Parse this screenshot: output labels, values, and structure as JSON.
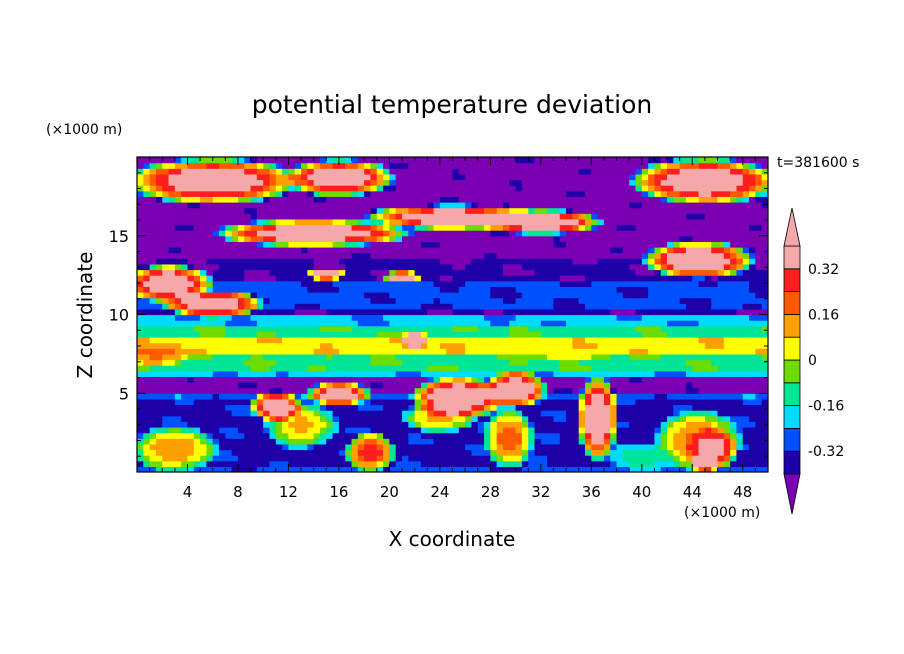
{
  "chart_data": {
    "type": "heatmap",
    "title": "potential temperature deviation",
    "time_label": "t=381600 s",
    "xlabel": "X coordinate",
    "ylabel": "Z coordinate",
    "x_unit": "(×1000 m)",
    "y_unit": "(×1000 m)",
    "xlim": [
      0,
      50
    ],
    "ylim": [
      0,
      20
    ],
    "x_ticks": [
      "4",
      "8",
      "12",
      "16",
      "20",
      "24",
      "28",
      "32",
      "36",
      "40",
      "44",
      "48"
    ],
    "x_tick_values": [
      4,
      8,
      12,
      16,
      20,
      24,
      28,
      32,
      36,
      40,
      44,
      48
    ],
    "y_ticks": [
      "5",
      "10",
      "15"
    ],
    "y_tick_values": [
      5,
      10,
      15
    ],
    "colorbar": {
      "levels": [
        -0.4,
        -0.32,
        -0.24,
        -0.16,
        -0.08,
        0,
        0.08,
        0.16,
        0.24,
        0.32,
        0.4
      ],
      "labels": [
        "0.32",
        "0.16",
        "0",
        "-0.16",
        "-0.32"
      ],
      "label_values": [
        0.32,
        0.16,
        0,
        -0.16,
        -0.32
      ],
      "colors": [
        "#7b00b4",
        "#1e00a8",
        "#0050ff",
        "#00dcff",
        "#00e696",
        "#6fdc00",
        "#ffff00",
        "#ffa000",
        "#ff5a00",
        "#ff1e1e",
        "#f5a8a8"
      ],
      "over_color": "#f5a8a8",
      "under_color": "#7b00b4"
    },
    "bands": [
      {
        "z0": 0,
        "z1": 0.5,
        "value": -0.3
      },
      {
        "z0": 0.5,
        "z1": 4.5,
        "value": -0.35
      },
      {
        "z0": 4.5,
        "z1": 5.0,
        "value": -0.28
      },
      {
        "z0": 5.0,
        "z1": 6.0,
        "value": -0.44
      },
      {
        "z0": 6.0,
        "z1": 6.6,
        "value": -0.22
      },
      {
        "z0": 6.6,
        "z1": 7.5,
        "value": -0.1
      },
      {
        "z0": 7.5,
        "z1": 8.5,
        "value": 0.05
      },
      {
        "z0": 8.5,
        "z1": 9.3,
        "value": -0.1
      },
      {
        "z0": 9.3,
        "z1": 10.0,
        "value": -0.22
      },
      {
        "z0": 10.0,
        "z1": 10.5,
        "value": -0.38
      },
      {
        "z0": 10.5,
        "z1": 12.0,
        "value": -0.3
      },
      {
        "z0": 12.0,
        "z1": 13.5,
        "value": -0.38
      },
      {
        "z0": 13.5,
        "z1": 20.0,
        "value": -0.44
      }
    ],
    "anomalies": [
      {
        "x": 1.5,
        "z": 7.5,
        "rx": 3.0,
        "rz": 0.8,
        "value": 0.18
      },
      {
        "x": 34.0,
        "z": 7.8,
        "rx": 5.0,
        "rz": 0.7,
        "value": 0.08
      },
      {
        "x": 44.5,
        "z": 2.0,
        "rx": 3.5,
        "rz": 2.0,
        "value": 0.2
      },
      {
        "x": 45.5,
        "z": 1.5,
        "rx": 2.0,
        "rz": 1.4,
        "value": 0.36
      },
      {
        "x": 45.0,
        "z": 0.6,
        "rx": 1.2,
        "rz": 0.6,
        "value": 0.45
      },
      {
        "x": 13.0,
        "z": 3.0,
        "rx": 3.0,
        "rz": 1.5,
        "value": 0.1
      },
      {
        "x": 18.5,
        "z": 1.3,
        "rx": 2.0,
        "rz": 1.3,
        "value": 0.3
      },
      {
        "x": 3.0,
        "z": 1.5,
        "rx": 3.5,
        "rz": 1.5,
        "value": 0.16
      },
      {
        "x": 29.5,
        "z": 2.2,
        "rx": 2.0,
        "rz": 2.0,
        "value": 0.22
      },
      {
        "x": 24.0,
        "z": 3.5,
        "rx": 3.0,
        "rz": 1.0,
        "value": 0.12
      },
      {
        "x": 40.0,
        "z": 1.0,
        "rx": 3.0,
        "rz": 1.0,
        "value": -0.1
      },
      {
        "x": 36.5,
        "z": 3.5,
        "rx": 1.6,
        "rz": 2.8,
        "value": 0.5
      },
      {
        "x": 25.5,
        "z": 4.8,
        "rx": 3.8,
        "rz": 1.4,
        "value": 0.5
      },
      {
        "x": 30.0,
        "z": 5.3,
        "rx": 2.5,
        "rz": 1.2,
        "value": 0.5
      },
      {
        "x": 11.0,
        "z": 4.2,
        "rx": 2.0,
        "rz": 1.0,
        "value": 0.5
      },
      {
        "x": 16.0,
        "z": 5.0,
        "rx": 2.5,
        "rz": 0.8,
        "value": 0.5
      },
      {
        "x": 6.0,
        "z": 18.5,
        "rx": 7.0,
        "rz": 1.5,
        "value": 0.5
      },
      {
        "x": 16.0,
        "z": 18.7,
        "rx": 4.5,
        "rz": 1.2,
        "value": 0.5
      },
      {
        "x": 45.0,
        "z": 18.5,
        "rx": 6.0,
        "rz": 1.5,
        "value": 0.5
      },
      {
        "x": 25.0,
        "z": 16.2,
        "rx": 7.0,
        "rz": 0.8,
        "value": 0.5
      },
      {
        "x": 32.0,
        "z": 15.9,
        "rx": 5.0,
        "rz": 0.8,
        "value": 0.5
      },
      {
        "x": 14.0,
        "z": 15.2,
        "rx": 8.0,
        "rz": 0.9,
        "value": 0.5
      },
      {
        "x": 44.5,
        "z": 13.5,
        "rx": 4.5,
        "rz": 1.2,
        "value": 0.5
      },
      {
        "x": 2.5,
        "z": 12.0,
        "rx": 3.5,
        "rz": 1.2,
        "value": 0.5
      },
      {
        "x": 6.0,
        "z": 10.7,
        "rx": 4.0,
        "rz": 0.9,
        "value": 0.5
      },
      {
        "x": 22.0,
        "z": 8.4,
        "rx": 1.0,
        "rz": 0.6,
        "value": 0.5
      },
      {
        "x": 15.0,
        "z": 12.6,
        "rx": 1.5,
        "rz": 0.4,
        "value": 0.5
      },
      {
        "x": 21.0,
        "z": 12.4,
        "rx": 1.5,
        "rz": 0.4,
        "value": 0.5
      }
    ]
  }
}
